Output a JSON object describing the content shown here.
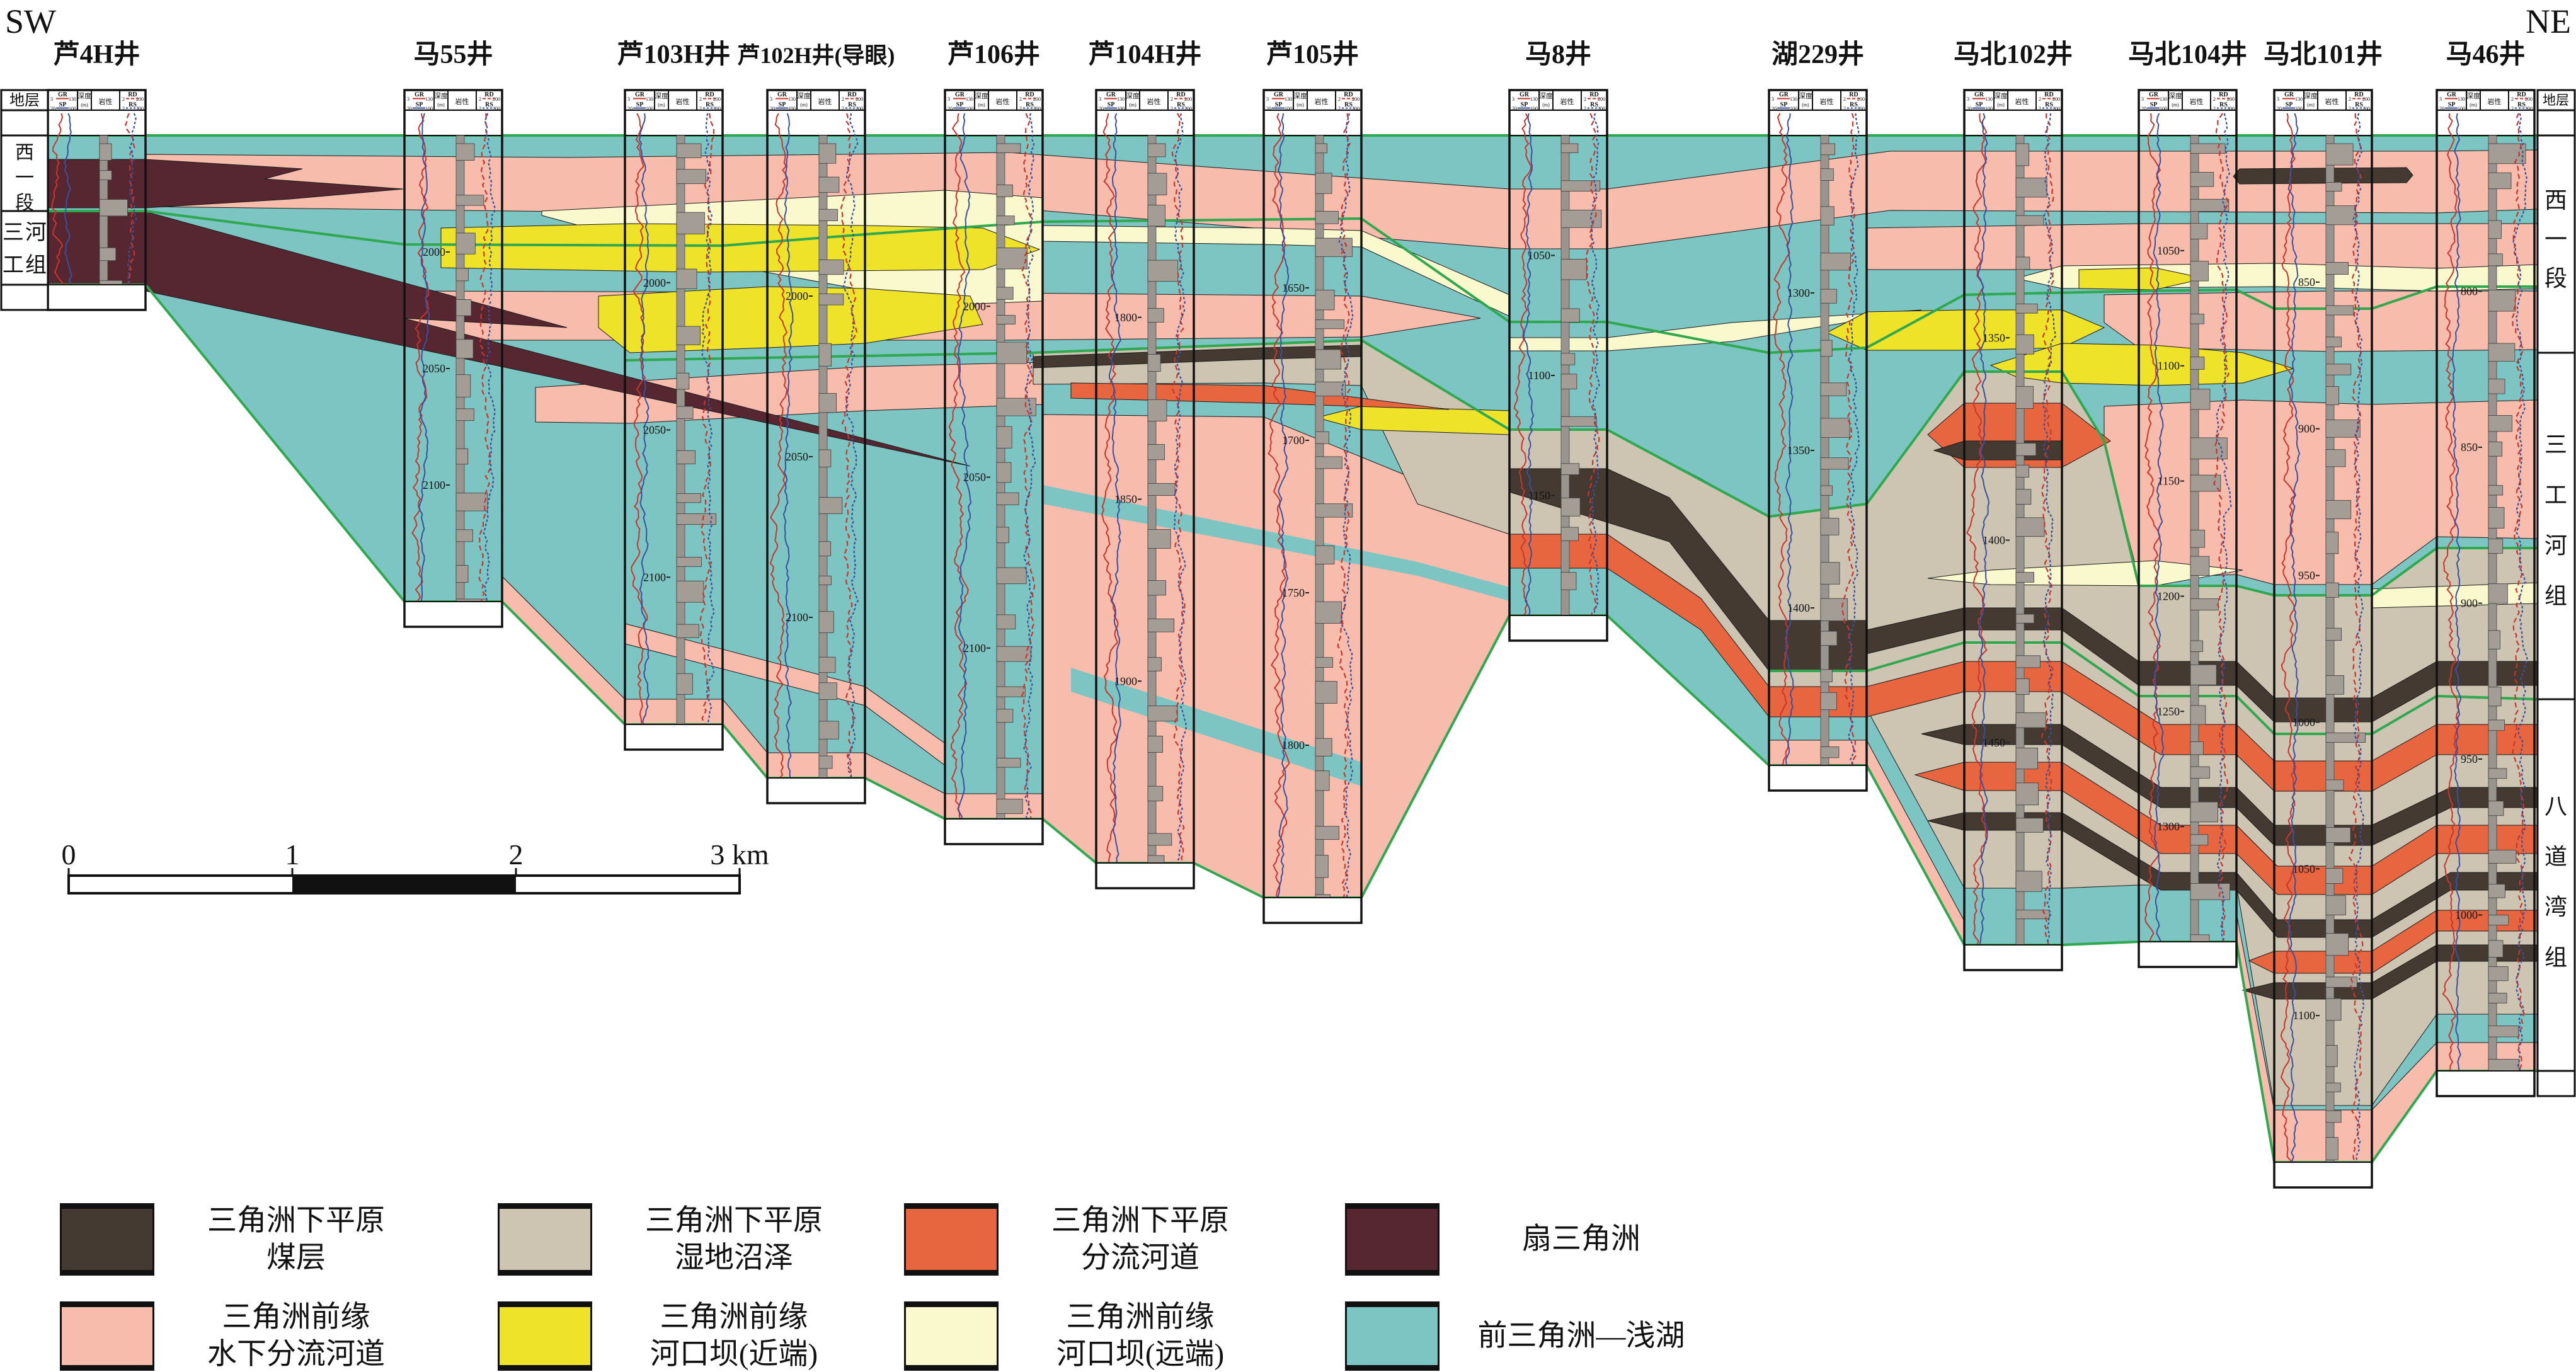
{
  "orientation": {
    "sw": "SW",
    "ne": "NE"
  },
  "stratigraphy": {
    "header": "地层",
    "left_units": [
      "西一段",
      "三工河组"
    ],
    "right_units": [
      "西一段",
      "三工河组",
      "八道湾组"
    ]
  },
  "track_header": {
    "gr_label": "GR",
    "gr_min": "3",
    "gr_max": "130",
    "sp_label": "SP",
    "sp_min": "20",
    "sp_max": "100",
    "depth_label": "深度",
    "depth_unit": "(m)",
    "lithology_label": "岩性",
    "rd_label": "RD",
    "rd_min": "2",
    "rd_max": "200",
    "rs_label": "RS",
    "rs_min": "2",
    "rs_max": "200"
  },
  "wells": [
    {
      "name": "芦4H井",
      "depth_labels": []
    },
    {
      "name": "马55井",
      "depth_labels": [
        "2000",
        "2050",
        "2100"
      ]
    },
    {
      "name": "芦103H井",
      "depth_labels": [
        "2000",
        "2050",
        "2100"
      ]
    },
    {
      "name": "芦102H井(导眼)",
      "depth_labels": [
        "2000",
        "2050",
        "2100"
      ]
    },
    {
      "name": "芦106井",
      "depth_labels": [
        "2000",
        "2050",
        "2100"
      ]
    },
    {
      "name": "芦104H井",
      "depth_labels": [
        "1800",
        "1850",
        "1900"
      ]
    },
    {
      "name": "芦105井",
      "depth_labels": [
        "1650",
        "1700",
        "1750",
        "1800"
      ]
    },
    {
      "name": "马8井",
      "depth_labels": [
        "1050",
        "1100",
        "1150"
      ]
    },
    {
      "name": "湖229井",
      "depth_labels": [
        "1300",
        "1350",
        "1400"
      ]
    },
    {
      "name": "马北102井",
      "depth_labels": [
        "1350",
        "1400",
        "1450"
      ]
    },
    {
      "name": "马北104井",
      "depth_labels": [
        "1050",
        "1100",
        "1150",
        "1200",
        "1250",
        "1300"
      ]
    },
    {
      "name": "马北101井",
      "depth_labels": [
        "850",
        "900",
        "950",
        "1000",
        "1050",
        "1100"
      ]
    },
    {
      "name": "马46井",
      "depth_labels": [
        "800",
        "850",
        "900",
        "950",
        "1000"
      ]
    }
  ],
  "scale_bar": {
    "ticks": [
      "0",
      "1",
      "2",
      "3 km"
    ]
  },
  "legend": {
    "items": [
      {
        "label_lines": [
          "三角洲下平原",
          "煤层"
        ],
        "color": "#453a32"
      },
      {
        "label_lines": [
          "三角洲下平原",
          "湿地沼泽"
        ],
        "color": "#cdc4b1"
      },
      {
        "label_lines": [
          "三角洲下平原",
          "分流河道"
        ],
        "color": "#e8663f"
      },
      {
        "label_lines": [
          "扇三角洲"
        ],
        "color": "#572731"
      },
      {
        "label_lines": [
          "三角洲前缘",
          "水下分流河道"
        ],
        "color": "#f7bcac"
      },
      {
        "label_lines": [
          "三角洲前缘",
          "河口坝(近端)"
        ],
        "color": "#efe32a"
      },
      {
        "label_lines": [
          "三角洲前缘",
          "河口坝(远端)"
        ],
        "color": "#faf8cd"
      },
      {
        "label_lines": [
          "前三角洲—浅湖"
        ],
        "color": "#7cc5c3"
      }
    ]
  },
  "colors": {
    "correlation_line": "#2fa84f",
    "gr_curve": "#c9342b",
    "sp_curve": "#3a4fa0",
    "lithology_gray": "#9a948e"
  }
}
